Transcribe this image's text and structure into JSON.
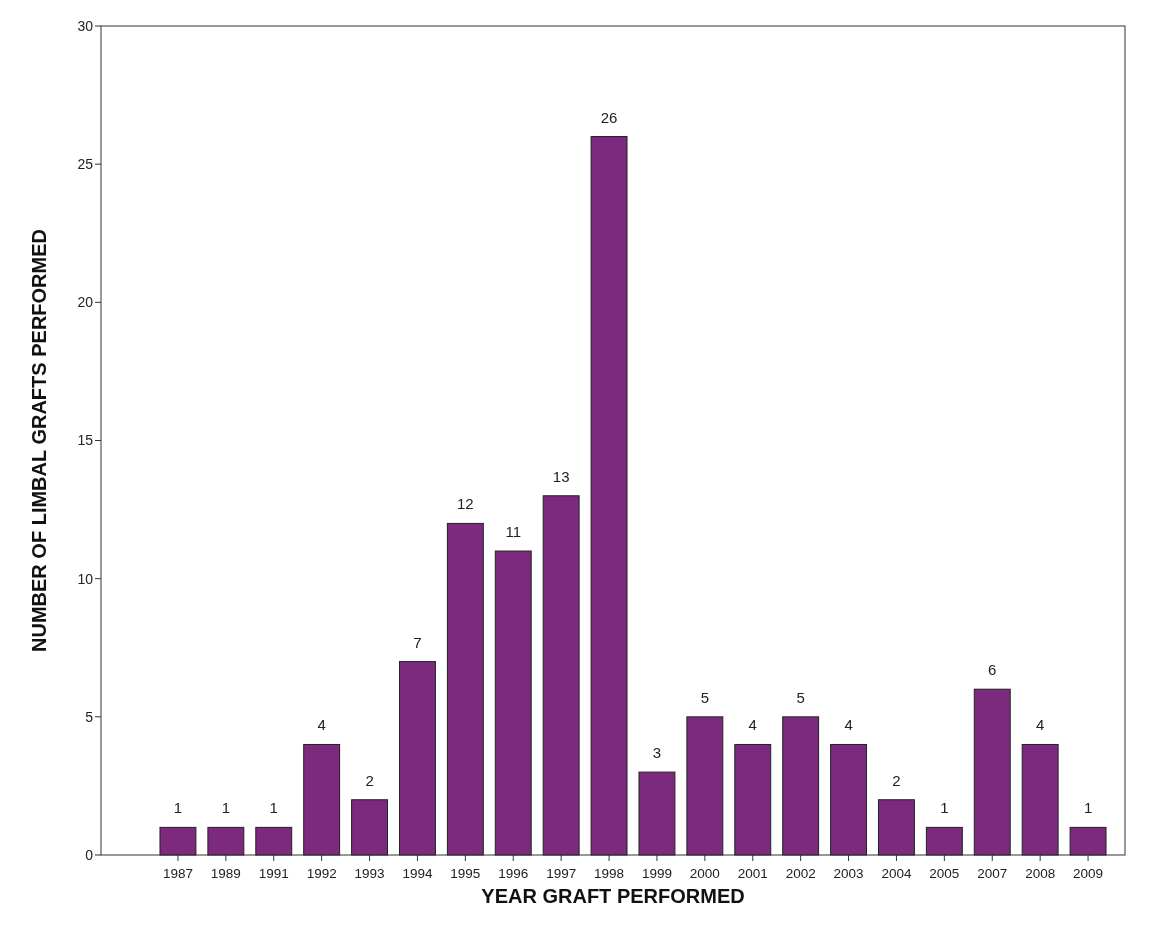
{
  "chart_data": {
    "type": "bar",
    "xlabel": "YEAR GRAFT PERFORMED",
    "ylabel": "NUMBER OF LIMBAL GRAFTS PERFORMED",
    "categories": [
      "1987",
      "1989",
      "1991",
      "1992",
      "1993",
      "1994",
      "1995",
      "1996",
      "1997",
      "1998",
      "1999",
      "2000",
      "2001",
      "2002",
      "2003",
      "2004",
      "2005",
      "2007",
      "2008",
      "2009"
    ],
    "values": [
      1,
      1,
      1,
      4,
      2,
      7,
      12,
      11,
      13,
      26,
      3,
      5,
      4,
      5,
      4,
      2,
      1,
      6,
      4,
      1
    ],
    "color": "#7b2a7e",
    "ylim": [
      0,
      30
    ],
    "yticks": [
      0,
      5,
      10,
      15,
      20,
      25,
      30
    ],
    "grid": false,
    "data_labels": true
  }
}
